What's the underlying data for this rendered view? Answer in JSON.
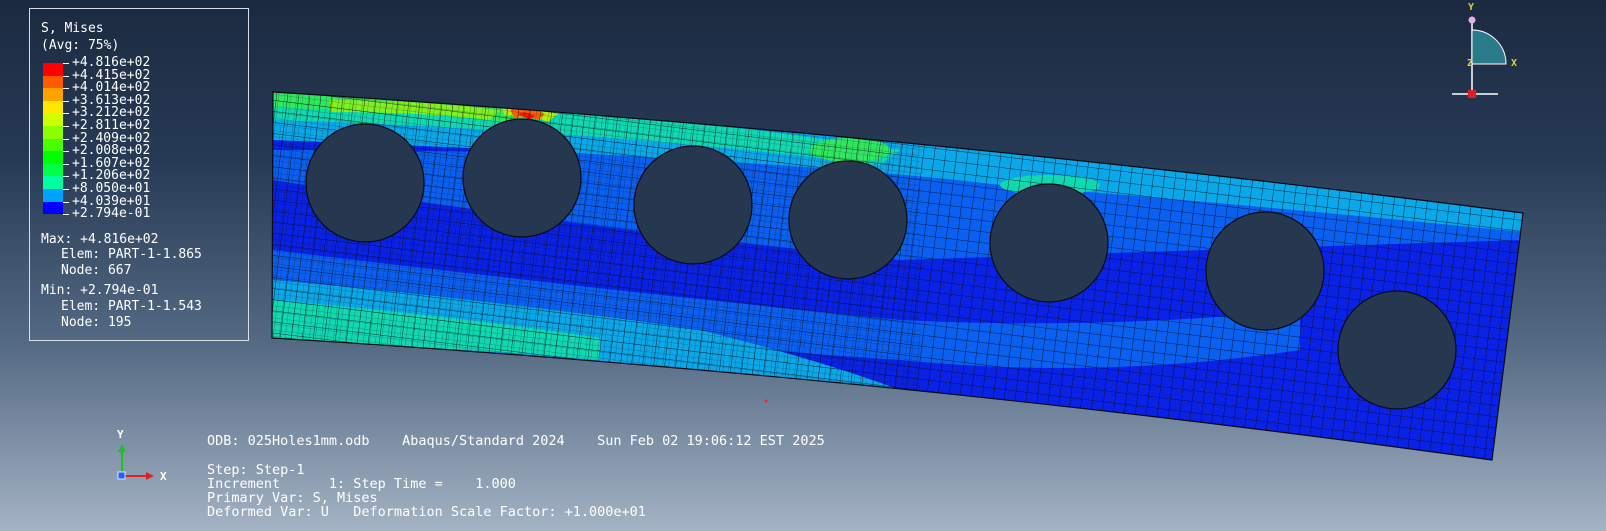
{
  "legend": {
    "title": "S, Mises",
    "avg": "(Avg: 75%)",
    "levels": [
      {
        "label": "+4.816e+02",
        "color": "#ff0000"
      },
      {
        "label": "+4.415e+02",
        "color": "#ff5a00"
      },
      {
        "label": "+4.014e+02",
        "color": "#ffa200"
      },
      {
        "label": "+3.613e+02",
        "color": "#ffe800"
      },
      {
        "label": "+3.212e+02",
        "color": "#d1ff00"
      },
      {
        "label": "+2.811e+02",
        "color": "#8bff00"
      },
      {
        "label": "+2.409e+02",
        "color": "#46ff00"
      },
      {
        "label": "+2.008e+02",
        "color": "#00ff00"
      },
      {
        "label": "+1.607e+02",
        "color": "#00ff46"
      },
      {
        "label": "+1.206e+02",
        "color": "#00ff8b"
      },
      {
        "label": "+8.050e+01",
        "color": "#00ffd1"
      },
      {
        "label": "+4.039e+01",
        "color": "#00a2ff"
      },
      {
        "label": "+2.794e-01",
        "color": "#0000ff"
      }
    ],
    "max": {
      "value": "Max: +4.816e+02",
      "elem": "Elem: PART-1-1.865",
      "node": "Node: 667"
    },
    "min": {
      "value": "Min: +2.794e-01",
      "elem": "Elem: PART-1-1.543",
      "node": "Node: 195"
    }
  },
  "info": {
    "odb": "ODB: 025Holes1mm.odb    Abaqus/Standard 2024    Sun Feb 02 19:06:12 EST 2025",
    "step": "Step: Step-1",
    "increment": "Increment      1: Step Time =    1.000",
    "primary": "Primary Var: S, Mises",
    "deformed": "Deformed Var: U   Deformation Scale Factor: +1.000e+01"
  },
  "triad": {
    "x": "X",
    "y": "Y",
    "z": "Z"
  },
  "colors": {
    "triad_x": "#e02020",
    "triad_y": "#20c020",
    "triad_z": "#2060ff",
    "view_x": "#e0d040",
    "view_y": "#e0d040",
    "mesh_line": "#0a0a14",
    "hole": "#26384f"
  }
}
